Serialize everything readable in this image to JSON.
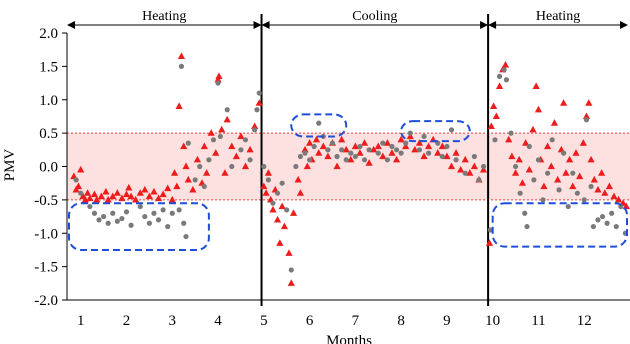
{
  "chart_data": {
    "type": "scatter",
    "title": "",
    "xlabel": "Months",
    "ylabel": "PMV",
    "xlim": [
      0.7,
      13.0
    ],
    "ylim": [
      -2.0,
      2.0
    ],
    "x_ticks": [
      1,
      2,
      3,
      4,
      5,
      6,
      7,
      8,
      9,
      10,
      11,
      12
    ],
    "y_ticks": [
      {
        "v": 2.0,
        "label": "2.0"
      },
      {
        "v": 1.5,
        "label": "1.5"
      },
      {
        "v": 1.0,
        "label": "1.0"
      },
      {
        "v": 0.5,
        "label": "0.5"
      },
      {
        "v": 0.0,
        "label": "0.0"
      },
      {
        "v": -0.5,
        "label": "-0.5"
      },
      {
        "v": -1.0,
        "label": "-1.0"
      },
      {
        "v": -1.5,
        "label": "-1.5"
      },
      {
        "v": -2.0,
        "label": "-2.0"
      }
    ],
    "comfort_band": {
      "low": -0.5,
      "high": 0.5,
      "fill": "#fde0e0",
      "line": "#e8413c"
    },
    "season_dividers": [
      4.95,
      9.9
    ],
    "seasons": [
      {
        "label": "Heating",
        "from": 0.7,
        "to": 4.95
      },
      {
        "label": "Cooling",
        "from": 4.95,
        "to": 9.9
      },
      {
        "label": "Heating",
        "from": 9.9,
        "to": 13.0
      }
    ],
    "highlight_boxes": [
      {
        "x0": 0.6,
        "x1": 3.8,
        "y0": -1.25,
        "y1": -0.55
      },
      {
        "x0": 5.6,
        "x1": 6.8,
        "y0": 0.45,
        "y1": 0.78
      },
      {
        "x0": 8.0,
        "x1": 9.5,
        "y0": 0.38,
        "y1": 0.68
      },
      {
        "x0": 10.0,
        "x1": 13.0,
        "y0": -1.2,
        "y1": -0.55
      }
    ],
    "series_style": [
      {
        "marker": "triangle",
        "color": "#ee1c1c"
      },
      {
        "marker": "circle",
        "color": "#7a7a7a"
      }
    ],
    "series": [
      {
        "points": [
          [
            0.85,
            -0.15
          ],
          [
            0.9,
            -0.35
          ],
          [
            0.95,
            -0.3
          ],
          [
            1.0,
            -0.05
          ],
          [
            1.05,
            -0.45
          ],
          [
            1.1,
            -0.5
          ],
          [
            1.15,
            -0.4
          ],
          [
            1.2,
            -0.48
          ],
          [
            1.3,
            -0.42
          ],
          [
            1.35,
            -0.5
          ],
          [
            1.45,
            -0.45
          ],
          [
            1.55,
            -0.38
          ],
          [
            1.6,
            -0.5
          ],
          [
            1.7,
            -0.45
          ],
          [
            1.8,
            -0.4
          ],
          [
            1.9,
            -0.48
          ],
          [
            2.0,
            -0.42
          ],
          [
            2.05,
            -0.32
          ],
          [
            2.1,
            -0.45
          ],
          [
            2.2,
            -0.5
          ],
          [
            2.3,
            -0.4
          ],
          [
            2.4,
            -0.35
          ],
          [
            2.5,
            -0.45
          ],
          [
            2.6,
            -0.38
          ],
          [
            2.7,
            -0.48
          ],
          [
            2.8,
            -0.42
          ],
          [
            2.9,
            -0.33
          ],
          [
            3.0,
            -0.5
          ],
          [
            3.05,
            -0.1
          ],
          [
            3.1,
            -0.3
          ],
          [
            3.15,
            0.9
          ],
          [
            3.2,
            1.65
          ],
          [
            3.25,
            0.3
          ],
          [
            3.3,
            0.0
          ],
          [
            3.35,
            -0.2
          ],
          [
            3.45,
            -0.35
          ],
          [
            3.55,
            0.1
          ],
          [
            3.65,
            -0.25
          ],
          [
            3.7,
            0.3
          ],
          [
            3.75,
            -0.1
          ],
          [
            3.85,
            0.5
          ],
          [
            3.95,
            0.2
          ],
          [
            4.0,
            1.3
          ],
          [
            4.02,
            1.35
          ],
          [
            4.08,
            0.55
          ],
          [
            4.15,
            -0.1
          ],
          [
            4.2,
            0.7
          ],
          [
            4.3,
            0.3
          ],
          [
            4.4,
            0.15
          ],
          [
            4.5,
            0.45
          ],
          [
            4.6,
            0.0
          ],
          [
            4.7,
            0.25
          ],
          [
            4.8,
            0.6
          ],
          [
            4.9,
            0.95
          ],
          [
            5.0,
            -0.3
          ],
          [
            5.05,
            -0.4
          ],
          [
            5.1,
            -0.1
          ],
          [
            5.15,
            -0.5
          ],
          [
            5.2,
            -0.65
          ],
          [
            5.25,
            -0.35
          ],
          [
            5.3,
            -0.8
          ],
          [
            5.35,
            -1.15
          ],
          [
            5.4,
            -0.6
          ],
          [
            5.45,
            -0.9
          ],
          [
            5.55,
            -1.3
          ],
          [
            5.6,
            -1.75
          ],
          [
            5.65,
            -0.7
          ],
          [
            5.75,
            -0.2
          ],
          [
            5.8,
            -0.4
          ],
          [
            5.9,
            0.25
          ],
          [
            5.95,
            0.0
          ],
          [
            6.0,
            0.35
          ],
          [
            6.05,
            0.1
          ],
          [
            6.15,
            0.4
          ],
          [
            6.2,
            0.2
          ],
          [
            6.3,
            0.3
          ],
          [
            6.4,
            0.15
          ],
          [
            6.5,
            0.35
          ],
          [
            6.6,
            0.0
          ],
          [
            6.7,
            0.4
          ],
          [
            6.8,
            0.25
          ],
          [
            6.9,
            0.1
          ],
          [
            7.0,
            0.3
          ],
          [
            7.1,
            0.2
          ],
          [
            7.2,
            0.35
          ],
          [
            7.3,
            0.05
          ],
          [
            7.4,
            0.25
          ],
          [
            7.5,
            0.3
          ],
          [
            7.6,
            0.15
          ],
          [
            7.7,
            0.35
          ],
          [
            7.8,
            0.2
          ],
          [
            7.9,
            0.1
          ],
          [
            8.0,
            0.4
          ],
          [
            8.1,
            0.3
          ],
          [
            8.2,
            0.45
          ],
          [
            8.3,
            0.25
          ],
          [
            8.4,
            0.35
          ],
          [
            8.5,
            0.15
          ],
          [
            8.6,
            0.3
          ],
          [
            8.7,
            0.4
          ],
          [
            8.8,
            0.2
          ],
          [
            8.9,
            0.3
          ],
          [
            9.0,
            0.15
          ],
          [
            9.1,
            0.0
          ],
          [
            9.2,
            0.2
          ],
          [
            9.3,
            -0.05
          ],
          [
            9.4,
            0.1
          ],
          [
            9.5,
            -0.1
          ],
          [
            9.6,
            0.0
          ],
          [
            9.7,
            -0.2
          ],
          [
            9.8,
            -0.05
          ],
          [
            9.93,
            -1.15
          ],
          [
            9.97,
            0.6
          ],
          [
            10.02,
            0.9
          ],
          [
            10.08,
            0.75
          ],
          [
            10.15,
            1.2
          ],
          [
            10.22,
            1.45
          ],
          [
            10.28,
            1.52
          ],
          [
            10.35,
            0.4
          ],
          [
            10.42,
            0.15
          ],
          [
            10.5,
            -0.1
          ],
          [
            10.58,
            0.1
          ],
          [
            10.65,
            -0.25
          ],
          [
            10.72,
            0.35
          ],
          [
            10.8,
            -0.05
          ],
          [
            10.88,
            0.55
          ],
          [
            10.95,
            1.2
          ],
          [
            11.0,
            0.85
          ],
          [
            11.05,
            0.1
          ],
          [
            11.12,
            -0.3
          ],
          [
            11.2,
            0.3
          ],
          [
            11.28,
            0.0
          ],
          [
            11.35,
            0.65
          ],
          [
            11.42,
            -0.2
          ],
          [
            11.5,
            0.25
          ],
          [
            11.55,
            0.95
          ],
          [
            11.6,
            -0.1
          ],
          [
            11.68,
            0.1
          ],
          [
            11.75,
            -0.3
          ],
          [
            11.82,
            0.2
          ],
          [
            11.9,
            -0.15
          ],
          [
            11.98,
            0.35
          ],
          [
            12.05,
            0.75
          ],
          [
            12.1,
            0.95
          ],
          [
            12.15,
            0.1
          ],
          [
            12.22,
            -0.2
          ],
          [
            12.3,
            -0.35
          ],
          [
            12.38,
            -0.1
          ],
          [
            12.45,
            -0.4
          ],
          [
            12.55,
            -0.3
          ],
          [
            12.65,
            -0.45
          ],
          [
            12.75,
            -0.5
          ],
          [
            12.85,
            -0.55
          ],
          [
            12.92,
            -0.6
          ]
        ]
      },
      {
        "points": [
          [
            0.9,
            -0.2
          ],
          [
            1.0,
            -0.4
          ],
          [
            1.2,
            -0.6
          ],
          [
            1.3,
            -0.7
          ],
          [
            1.4,
            -0.8
          ],
          [
            1.5,
            -0.75
          ],
          [
            1.6,
            -0.85
          ],
          [
            1.7,
            -0.7
          ],
          [
            1.8,
            -0.82
          ],
          [
            1.9,
            -0.78
          ],
          [
            2.0,
            -0.68
          ],
          [
            2.1,
            -0.88
          ],
          [
            2.3,
            -0.6
          ],
          [
            2.4,
            -0.75
          ],
          [
            2.5,
            -0.85
          ],
          [
            2.6,
            -0.7
          ],
          [
            2.7,
            -0.8
          ],
          [
            2.8,
            -0.65
          ],
          [
            2.9,
            -0.9
          ],
          [
            3.0,
            -0.7
          ],
          [
            3.15,
            -0.65
          ],
          [
            3.2,
            1.5
          ],
          [
            3.25,
            -0.85
          ],
          [
            3.3,
            -1.05
          ],
          [
            3.35,
            0.35
          ],
          [
            3.5,
            -0.2
          ],
          [
            3.6,
            0.0
          ],
          [
            3.7,
            -0.3
          ],
          [
            3.8,
            0.1
          ],
          [
            3.9,
            0.4
          ],
          [
            4.0,
            1.25
          ],
          [
            4.05,
            0.45
          ],
          [
            4.2,
            0.85
          ],
          [
            4.3,
            0.0
          ],
          [
            4.5,
            0.25
          ],
          [
            4.6,
            0.4
          ],
          [
            4.7,
            0.1
          ],
          [
            4.8,
            0.55
          ],
          [
            4.85,
            0.85
          ],
          [
            4.9,
            1.1
          ],
          [
            5.0,
            0.0
          ],
          [
            5.1,
            -0.2
          ],
          [
            5.2,
            -0.55
          ],
          [
            5.3,
            -0.4
          ],
          [
            5.4,
            -0.25
          ],
          [
            5.5,
            -0.65
          ],
          [
            5.6,
            -1.55
          ],
          [
            5.7,
            0.0
          ],
          [
            5.8,
            0.15
          ],
          [
            5.9,
            0.2
          ],
          [
            6.0,
            0.1
          ],
          [
            6.1,
            0.3
          ],
          [
            6.2,
            0.65
          ],
          [
            6.3,
            0.45
          ],
          [
            6.4,
            0.25
          ],
          [
            6.5,
            0.35
          ],
          [
            6.6,
            0.15
          ],
          [
            6.7,
            0.25
          ],
          [
            6.8,
            0.1
          ],
          [
            6.9,
            0.2
          ],
          [
            7.0,
            0.15
          ],
          [
            7.1,
            0.3
          ],
          [
            7.2,
            0.1
          ],
          [
            7.3,
            0.25
          ],
          [
            7.5,
            0.2
          ],
          [
            7.6,
            0.35
          ],
          [
            7.7,
            0.1
          ],
          [
            7.8,
            0.3
          ],
          [
            7.9,
            0.25
          ],
          [
            8.0,
            0.2
          ],
          [
            8.1,
            0.35
          ],
          [
            8.2,
            0.5
          ],
          [
            8.4,
            0.25
          ],
          [
            8.5,
            0.45
          ],
          [
            8.6,
            0.2
          ],
          [
            8.8,
            0.35
          ],
          [
            8.9,
            0.15
          ],
          [
            9.0,
            0.3
          ],
          [
            9.1,
            0.55
          ],
          [
            9.2,
            0.1
          ],
          [
            9.4,
            -0.1
          ],
          [
            9.6,
            0.15
          ],
          [
            9.7,
            -0.2
          ],
          [
            9.8,
            0.0
          ],
          [
            9.95,
            -0.95
          ],
          [
            10.05,
            0.4
          ],
          [
            10.15,
            1.35
          ],
          [
            10.25,
            1.45
          ],
          [
            10.3,
            1.3
          ],
          [
            10.4,
            0.5
          ],
          [
            10.5,
            0.0
          ],
          [
            10.6,
            -0.4
          ],
          [
            10.7,
            -0.7
          ],
          [
            10.75,
            -0.9
          ],
          [
            10.8,
            0.3
          ],
          [
            10.9,
            -0.2
          ],
          [
            11.0,
            0.1
          ],
          [
            11.1,
            -0.5
          ],
          [
            11.2,
            -0.1
          ],
          [
            11.3,
            0.4
          ],
          [
            11.45,
            -0.35
          ],
          [
            11.55,
            0.2
          ],
          [
            11.65,
            -0.6
          ],
          [
            11.75,
            -0.1
          ],
          [
            11.85,
            -0.4
          ],
          [
            12.0,
            -0.5
          ],
          [
            12.05,
            0.7
          ],
          [
            12.15,
            -0.3
          ],
          [
            12.2,
            -0.9
          ],
          [
            12.3,
            -0.8
          ],
          [
            12.4,
            -0.75
          ],
          [
            12.5,
            -0.85
          ],
          [
            12.6,
            -0.7
          ],
          [
            12.7,
            -0.9
          ],
          [
            12.8,
            -0.6
          ],
          [
            12.9,
            -1.0
          ]
        ]
      }
    ]
  }
}
